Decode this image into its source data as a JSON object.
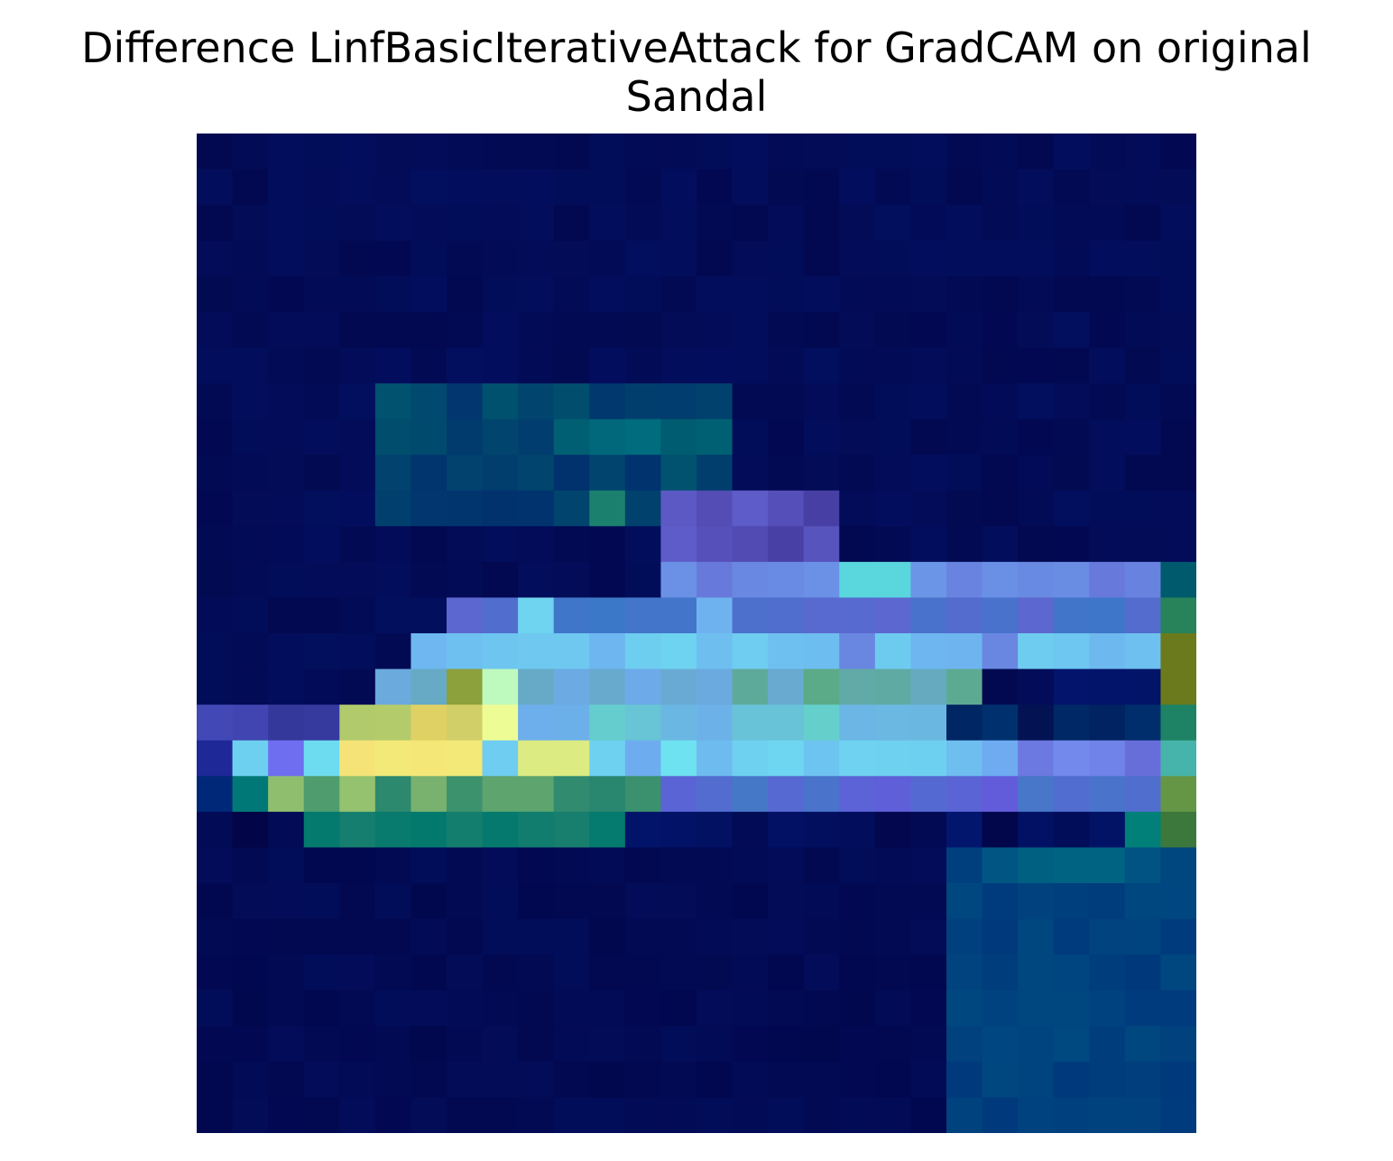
{
  "title": {
    "line1": "Difference LinfBasicIterativeAttack for GradCAM on original",
    "line2": "Sandal"
  },
  "image": {
    "grid_size": 28,
    "content": "heatmap-overlay-image",
    "colors": {
      "bg_dark": "#000a52",
      "band_yellow": "#f2ee78",
      "band_cyan": "#7ef2f2",
      "band_teal": "#1c8070",
      "band_blue": "#6f78e8",
      "olive": "#6b7a1c"
    }
  }
}
